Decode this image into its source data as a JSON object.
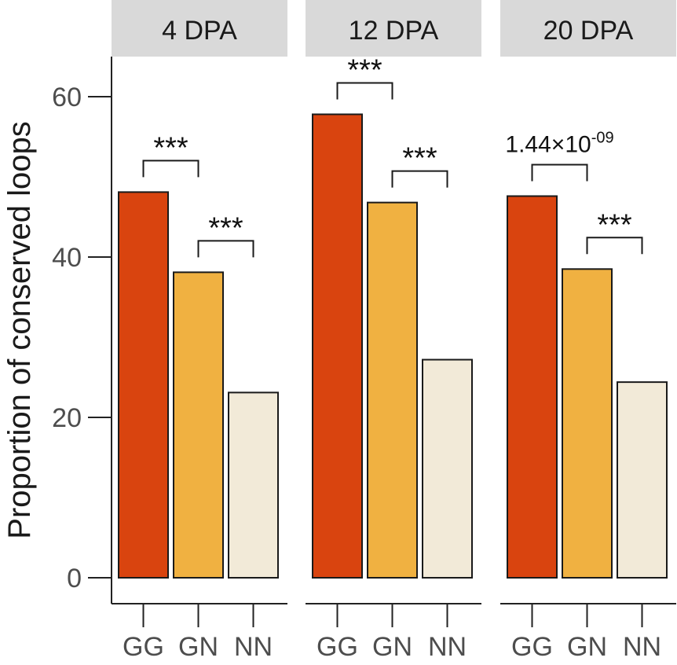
{
  "chart_data": {
    "type": "bar",
    "ylabel": "Proportion of conserved loops",
    "ylim": [
      0,
      65
    ],
    "yticks": [
      0,
      20,
      40,
      60
    ],
    "categories": [
      "GG",
      "GN",
      "NN"
    ],
    "colors": {
      "GG": "#D9440F",
      "GN": "#F0B141",
      "NN": "#F2EAD8"
    },
    "strip_color": "#D9D9D9",
    "grid": false,
    "panels": [
      {
        "name": "4 DPA",
        "values": [
          48.1,
          38.1,
          23.1
        ],
        "comparisons": [
          {
            "pair": [
              "GG",
              "GN"
            ],
            "label": "***"
          },
          {
            "pair": [
              "GN",
              "NN"
            ],
            "label": "***"
          }
        ]
      },
      {
        "name": "12 DPA",
        "values": [
          57.8,
          46.8,
          27.2
        ],
        "comparisons": [
          {
            "pair": [
              "GG",
              "GN"
            ],
            "label": "***"
          },
          {
            "pair": [
              "GN",
              "NN"
            ],
            "label": "***"
          }
        ]
      },
      {
        "name": "20 DPA",
        "values": [
          47.6,
          38.5,
          24.4
        ],
        "comparisons": [
          {
            "pair": [
              "GG",
              "GN"
            ],
            "label": "1.44×10",
            "label_sup": "-09"
          },
          {
            "pair": [
              "GN",
              "NN"
            ],
            "label": "***"
          }
        ]
      }
    ]
  }
}
